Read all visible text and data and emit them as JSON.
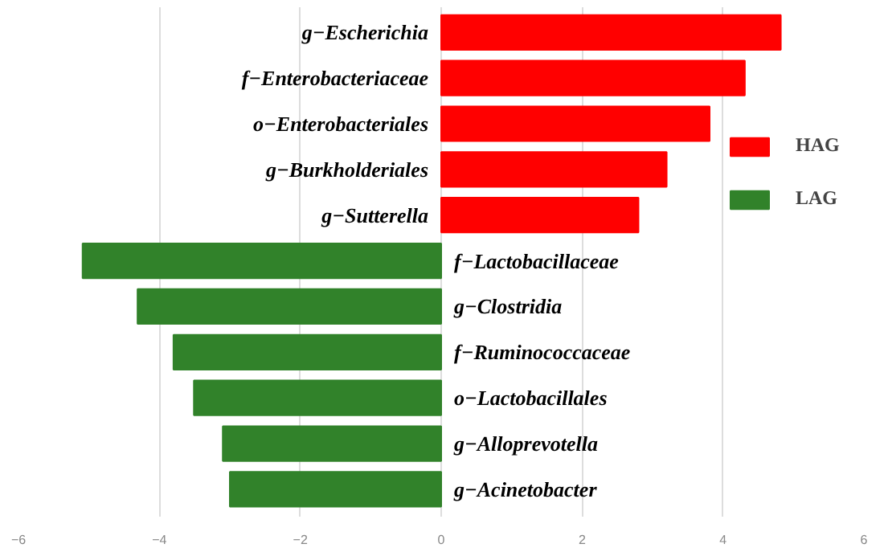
{
  "chart_data": {
    "type": "bar",
    "orientation": "horizontal",
    "categories": [
      "g−Escherichia",
      "f−Enterobacteriaceae",
      "o−Enterobacteriales",
      "g−Burkholderiales",
      "g−Sutterella",
      "f−Lactobacillaceae",
      "g−Clostridia",
      "f−Ruminococcaceae",
      "o−Lactobacillales",
      "g−Alloprevotella",
      "g−Acinetobacter"
    ],
    "series": [
      {
        "name": "HAG",
        "color": "#ff0000",
        "values": [
          4.82,
          4.31,
          3.81,
          3.2,
          2.8,
          null,
          null,
          null,
          null,
          null,
          null
        ]
      },
      {
        "name": "LAG",
        "color": "#31822a",
        "values": [
          null,
          null,
          null,
          null,
          null,
          -5.09,
          -4.31,
          -3.8,
          -3.51,
          -3.1,
          -3.0
        ]
      }
    ],
    "xlim": [
      -6,
      6
    ],
    "xticks": [
      -6,
      -4,
      -2,
      0,
      2,
      4,
      6
    ],
    "grid": "x",
    "tick_labels": "x",
    "legend": "right"
  }
}
